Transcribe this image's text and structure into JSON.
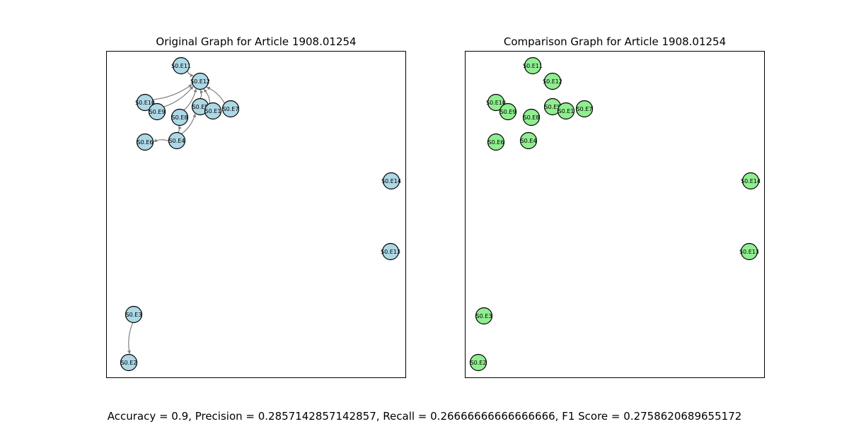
{
  "panels": [
    {
      "id": "left",
      "title": "Original Graph for Article 1908.01254",
      "node_color": "#add8e6",
      "nodes": [
        "S0.E11",
        "S0.E12",
        "S0.E10",
        "S0.E9",
        "S0.E8",
        "S0.E5",
        "S0.E1",
        "S0.E7",
        "S0.E6",
        "S0.E4",
        "S0.E14",
        "S0.E13",
        "S0.E3",
        "S0.E2"
      ],
      "edges": [
        {
          "from": "S0.E10",
          "to": "S0.E12"
        },
        {
          "from": "S0.E9",
          "to": "S0.E12"
        },
        {
          "from": "S0.E8",
          "to": "S0.E12"
        },
        {
          "from": "S0.E5",
          "to": "S0.E12"
        },
        {
          "from": "S0.E1",
          "to": "S0.E12"
        },
        {
          "from": "S0.E7",
          "to": "S0.E12"
        },
        {
          "from": "S0.E11",
          "to": "S0.E12"
        },
        {
          "from": "S0.E4",
          "to": "S0.E8"
        },
        {
          "from": "S0.E4",
          "to": "S0.E5"
        },
        {
          "from": "S0.E4",
          "to": "S0.E6"
        },
        {
          "from": "S0.E3",
          "to": "S0.E2"
        }
      ]
    },
    {
      "id": "right",
      "title": "Comparison Graph for Article 1908.01254",
      "node_color": "#90ee90",
      "nodes": [
        "S0.E11",
        "S0.E12",
        "S0.E10",
        "S0.E9",
        "S0.E8",
        "S0.E5",
        "S0.E1",
        "S0.E7",
        "S0.E6",
        "S0.E4",
        "S0.E14",
        "S0.E13",
        "S0.E3",
        "S0.E2"
      ],
      "edges": []
    }
  ],
  "metrics_text": "Accuracy = 0.9, Precision = 0.2857142857142857, Recall = 0.26666666666666666, F1 Score = 0.2758620689655172",
  "edge_color": "#808080"
}
